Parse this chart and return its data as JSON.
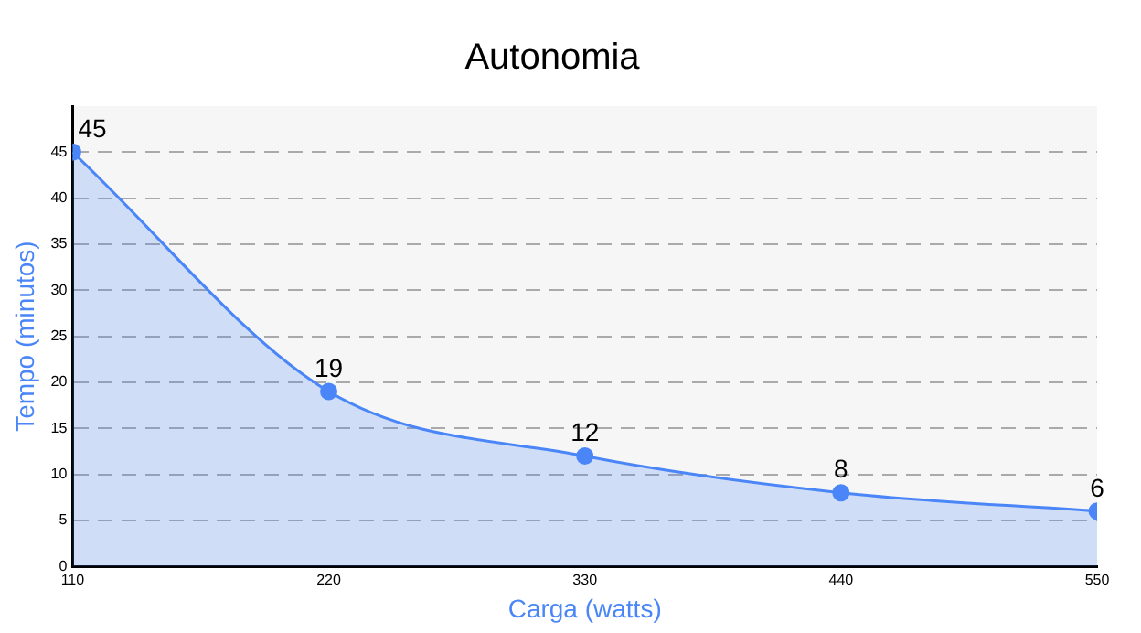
{
  "chart_data": {
    "type": "area",
    "title": "Autonomia",
    "xlabel": "Carga (watts)",
    "ylabel": "Tempo (minutos)",
    "x": [
      110,
      220,
      330,
      440,
      550
    ],
    "series": [
      {
        "color": "#4a86f7",
        "values": [
          45,
          19,
          12,
          8,
          6
        ]
      }
    ],
    "xlim": [
      110,
      550
    ],
    "xticks": [
      110,
      220,
      330,
      440,
      550
    ],
    "ylim": [
      0,
      50
    ],
    "yticks": [
      0,
      5,
      10,
      15,
      20,
      25,
      30,
      35,
      40,
      45
    ],
    "grid": "y",
    "marker": "circle",
    "data_labels": true,
    "legend": false
  }
}
